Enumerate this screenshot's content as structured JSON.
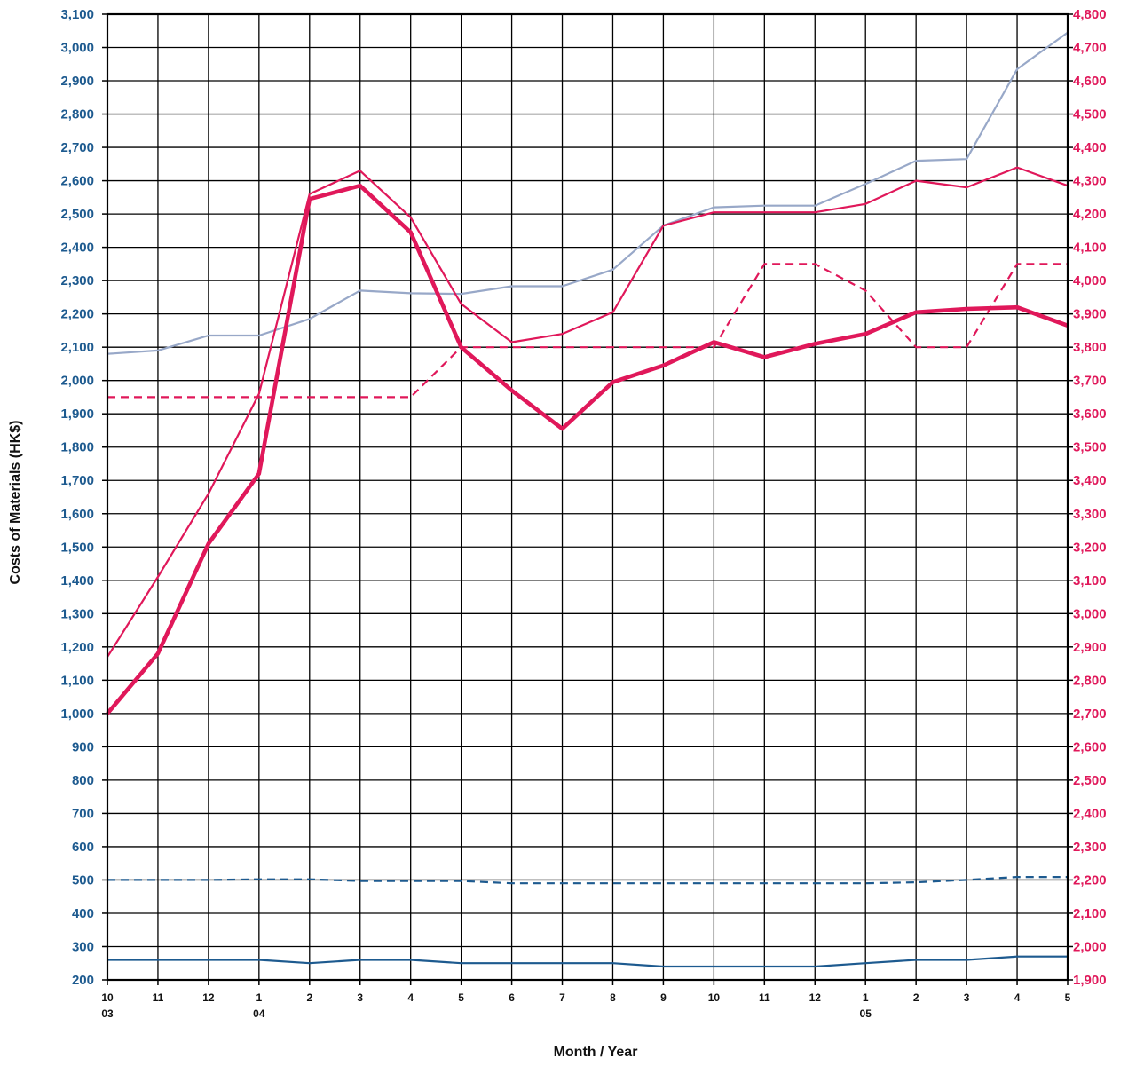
{
  "chart_data": {
    "type": "line",
    "xlabel": "Month / Year",
    "ylabel": "Costs of Materials (HK$)",
    "x_ticks": [
      {
        "month": "10",
        "year": "03"
      },
      {
        "month": "11",
        "year": ""
      },
      {
        "month": "12",
        "year": ""
      },
      {
        "month": "1",
        "year": "04"
      },
      {
        "month": "2",
        "year": ""
      },
      {
        "month": "3",
        "year": ""
      },
      {
        "month": "4",
        "year": ""
      },
      {
        "month": "5",
        "year": ""
      },
      {
        "month": "6",
        "year": ""
      },
      {
        "month": "7",
        "year": ""
      },
      {
        "month": "8",
        "year": ""
      },
      {
        "month": "9",
        "year": ""
      },
      {
        "month": "10",
        "year": ""
      },
      {
        "month": "11",
        "year": ""
      },
      {
        "month": "12",
        "year": ""
      },
      {
        "month": "1",
        "year": "05"
      },
      {
        "month": "2",
        "year": ""
      },
      {
        "month": "3",
        "year": ""
      },
      {
        "month": "4",
        "year": ""
      },
      {
        "month": "5",
        "year": ""
      }
    ],
    "y_left": {
      "min": 200,
      "max": 3100,
      "ticks": [
        "200",
        "300",
        "400",
        "500",
        "600",
        "700",
        "800",
        "900",
        "1,000",
        "1,100",
        "1,200",
        "1,300",
        "1,400",
        "1,500",
        "1,600",
        "1,700",
        "1,800",
        "1,900",
        "2,000",
        "2,100",
        "2,200",
        "2,300",
        "2,400",
        "2,500",
        "2,600",
        "2,700",
        "2,800",
        "2,900",
        "3,000",
        "3,100"
      ],
      "color": "#1d5a8f"
    },
    "y_right": {
      "min": 1900,
      "max": 4800,
      "ticks": [
        "1,900",
        "2,000",
        "2,100",
        "2,200",
        "2,300",
        "2,400",
        "2,500",
        "2,600",
        "2,700",
        "2,800",
        "2,900",
        "3,000",
        "3,100",
        "3,200",
        "3,300",
        "3,400",
        "3,500",
        "3,600",
        "3,700",
        "3,800",
        "3,900",
        "4,000",
        "4,100",
        "4,200",
        "4,300",
        "4,400",
        "4,500",
        "4,600",
        "4,700",
        "4,800"
      ],
      "color": "#e0185a"
    },
    "grid": true,
    "series": [
      {
        "axis": "left",
        "color": "#98a8c8",
        "style": "solid",
        "weight": "thin",
        "values": [
          2080,
          2090,
          2135,
          2135,
          2185,
          2270,
          2262,
          2260,
          2283,
          2283,
          2333,
          2465,
          2520,
          2525,
          2525,
          2590,
          2660,
          2665,
          2935,
          3045
        ]
      },
      {
        "axis": "right",
        "color": "#e0185a",
        "style": "solid",
        "weight": "thin",
        "values": [
          2870,
          3110,
          3360,
          3660,
          4260,
          4330,
          4190,
          3930,
          3815,
          3840,
          3905,
          4165,
          4205,
          4205,
          4205,
          4230,
          4300,
          4280,
          4340,
          4285
        ]
      },
      {
        "axis": "right",
        "color": "#e0185a",
        "style": "solid",
        "weight": "thick",
        "values": [
          2700,
          2880,
          3210,
          3420,
          4245,
          4285,
          4145,
          3800,
          3670,
          3555,
          3695,
          3745,
          3815,
          3770,
          3810,
          3840,
          3905,
          3915,
          3920,
          3865
        ]
      },
      {
        "axis": "right",
        "color": "#e0185a",
        "style": "dashed",
        "weight": "normal",
        "values": [
          3650,
          3650,
          3650,
          3650,
          3650,
          3650,
          3650,
          3800,
          3800,
          3800,
          3800,
          3800,
          3800,
          4050,
          4050,
          3970,
          3800,
          3800,
          4050,
          4050
        ]
      },
      {
        "axis": "left",
        "color": "#1d5a8f",
        "style": "dashed",
        "weight": "normal",
        "values": [
          500,
          500,
          500,
          502,
          502,
          497,
          497,
          497,
          490,
          490,
          490,
          490,
          490,
          490,
          490,
          490,
          493,
          500,
          509,
          509
        ]
      },
      {
        "axis": "left",
        "color": "#1d5a8f",
        "style": "solid",
        "weight": "normal",
        "values": [
          260,
          260,
          260,
          260,
          250,
          260,
          260,
          250,
          250,
          250,
          250,
          240,
          240,
          240,
          240,
          250,
          260,
          260,
          270,
          270
        ]
      }
    ]
  }
}
